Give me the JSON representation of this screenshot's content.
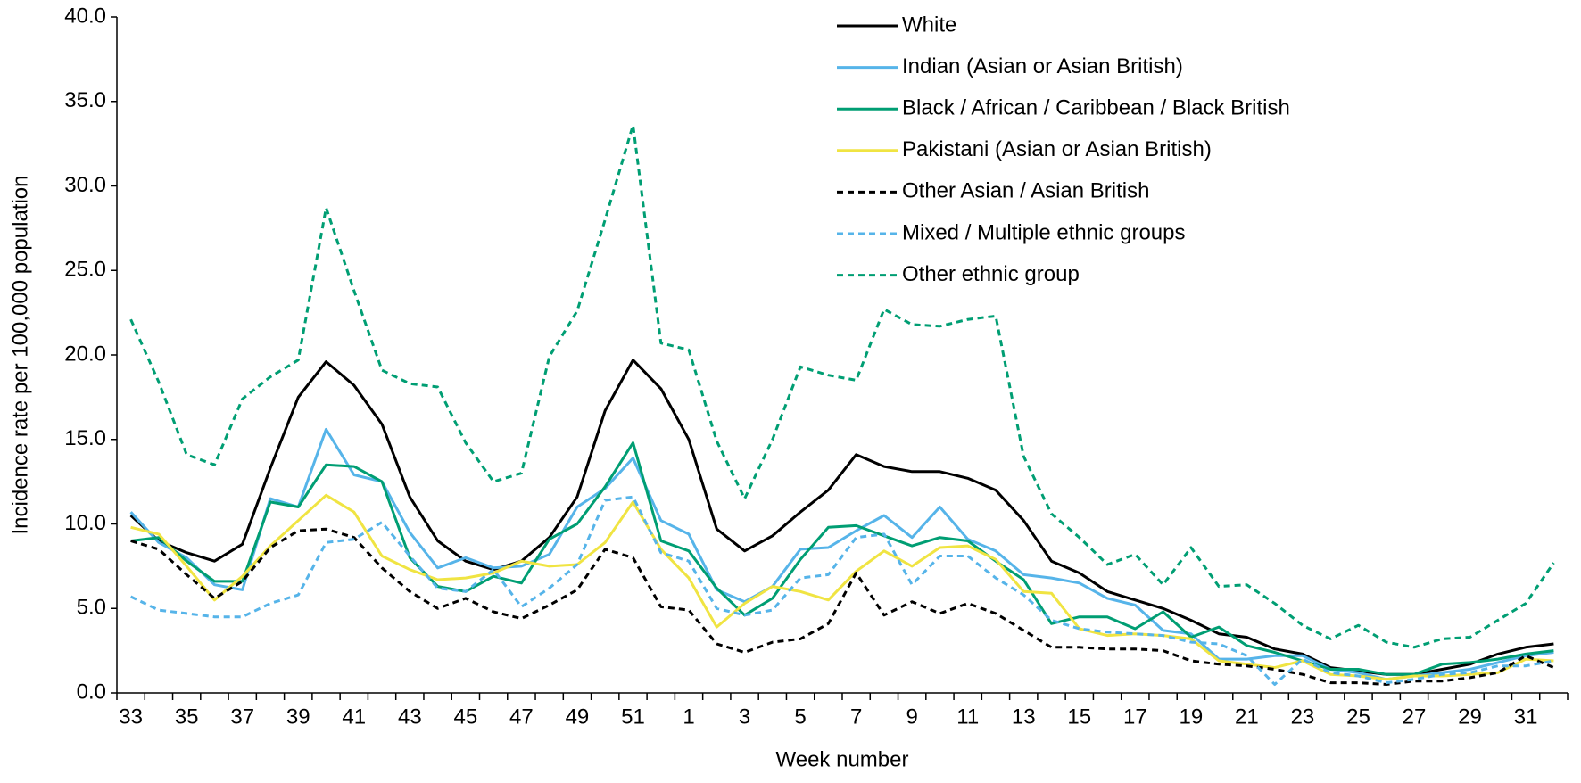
{
  "chart_data": {
    "type": "line",
    "x_label": "Week number",
    "y_label": "Incidence rate per 100,000 population",
    "categories": [
      "33",
      null,
      "35",
      null,
      "37",
      null,
      "39",
      null,
      "41",
      null,
      "43",
      null,
      "45",
      null,
      "47",
      null,
      "49",
      null,
      "51",
      null,
      "1",
      null,
      "3",
      null,
      "5",
      null,
      "7",
      null,
      "9",
      null,
      "11",
      null,
      "13",
      null,
      "15",
      null,
      "17",
      null,
      "19",
      null,
      "21",
      null,
      "23",
      null,
      "25",
      null,
      "27",
      null,
      "29",
      null,
      "31",
      null
    ],
    "ylim": [
      0,
      40
    ],
    "yticks": [
      {
        "value": 0,
        "label": "0.0"
      },
      {
        "value": 5,
        "label": "5.0"
      },
      {
        "value": 10,
        "label": "10.0"
      },
      {
        "value": 15,
        "label": "15.0"
      },
      {
        "value": 20,
        "label": "20.0"
      },
      {
        "value": 25,
        "label": "25.0"
      },
      {
        "value": 30,
        "label": "30.0"
      },
      {
        "value": 35,
        "label": "35.0"
      },
      {
        "value": 40,
        "label": "40.0"
      }
    ],
    "grid": false,
    "legend": "top-right",
    "series": [
      {
        "name": "White",
        "color": "#000000",
        "dashed": false,
        "values": [
          10.5,
          9.0,
          8.3,
          7.8,
          8.8,
          13.3,
          17.5,
          19.6,
          18.2,
          15.9,
          11.6,
          9.0,
          7.8,
          7.3,
          7.8,
          9.2,
          11.6,
          16.7,
          19.7,
          18.0,
          15.0,
          9.7,
          8.4,
          9.3,
          10.7,
          12.0,
          14.1,
          13.4,
          13.1,
          13.1,
          12.7,
          12.0,
          10.2,
          7.8,
          7.1,
          6.0,
          5.5,
          5.0,
          4.3,
          3.5,
          3.3,
          2.6,
          2.3,
          1.5,
          1.3,
          1.1,
          1.1,
          1.4,
          1.7,
          2.3,
          2.7,
          2.9
        ]
      },
      {
        "name": "Indian (Asian or Asian British)",
        "color": "#56b4e9",
        "dashed": false,
        "values": [
          10.7,
          8.9,
          8.0,
          6.4,
          6.1,
          11.5,
          11.0,
          15.6,
          12.9,
          12.5,
          9.5,
          7.4,
          8.0,
          7.4,
          7.5,
          8.2,
          11.0,
          12.1,
          13.9,
          10.2,
          9.4,
          6.1,
          5.4,
          6.3,
          8.5,
          8.6,
          9.6,
          10.5,
          9.2,
          11.0,
          9.1,
          8.4,
          7.0,
          6.8,
          6.5,
          5.6,
          5.2,
          3.7,
          3.5,
          2.0,
          2.0,
          2.2,
          2.2,
          1.4,
          1.2,
          0.8,
          1.0,
          1.2,
          1.4,
          1.8,
          2.2,
          2.4
        ]
      },
      {
        "name": "Black / African / Caribbean / Black British",
        "color": "#009e73",
        "dashed": false,
        "values": [
          9.0,
          9.2,
          7.8,
          6.6,
          6.6,
          11.3,
          11.0,
          13.5,
          13.4,
          12.5,
          8.0,
          6.3,
          6.0,
          6.9,
          6.5,
          9.1,
          10.0,
          12.2,
          14.8,
          9.0,
          8.4,
          6.2,
          4.6,
          5.6,
          7.9,
          9.8,
          9.9,
          9.3,
          8.7,
          9.2,
          9.0,
          7.8,
          6.7,
          4.1,
          4.5,
          4.5,
          3.8,
          4.8,
          3.3,
          3.9,
          2.8,
          2.4,
          1.9,
          1.4,
          1.4,
          1.1,
          1.1,
          1.7,
          1.8,
          2.0,
          2.3,
          2.5
        ]
      },
      {
        "name": "Pakistani (Asian or Asian British)",
        "color": "#f0e442",
        "dashed": false,
        "values": [
          9.8,
          9.4,
          7.5,
          5.5,
          6.9,
          8.7,
          10.2,
          11.7,
          10.7,
          8.1,
          7.3,
          6.7,
          6.8,
          7.1,
          7.8,
          7.5,
          7.6,
          8.9,
          11.3,
          8.5,
          6.8,
          3.9,
          5.3,
          6.3,
          6.0,
          5.5,
          7.2,
          8.4,
          7.5,
          8.6,
          8.7,
          7.9,
          6.0,
          5.9,
          3.8,
          3.4,
          3.5,
          3.4,
          3.2,
          1.9,
          1.7,
          1.5,
          1.9,
          1.1,
          1.0,
          0.8,
          1.0,
          1.0,
          1.1,
          1.2,
          2.0,
          1.9
        ]
      },
      {
        "name": "Other Asian / Asian British",
        "color": "#000000",
        "dashed": true,
        "values": [
          9.0,
          8.5,
          7.0,
          5.6,
          6.6,
          8.6,
          9.6,
          9.7,
          9.2,
          7.4,
          6.0,
          5.0,
          5.6,
          4.8,
          4.4,
          5.2,
          6.1,
          8.5,
          8.0,
          5.1,
          4.9,
          2.9,
          2.4,
          3.0,
          3.2,
          4.1,
          7.1,
          4.6,
          5.4,
          4.7,
          5.3,
          4.7,
          3.7,
          2.7,
          2.7,
          2.6,
          2.6,
          2.5,
          1.9,
          1.7,
          1.6,
          1.4,
          1.1,
          0.6,
          0.6,
          0.5,
          0.7,
          0.7,
          0.9,
          1.2,
          2.2,
          1.5
        ]
      },
      {
        "name": "Mixed / Multiple ethnic groups",
        "color": "#56b4e9",
        "dashed": true,
        "values": [
          5.7,
          4.9,
          4.7,
          4.5,
          4.5,
          5.3,
          5.8,
          8.9,
          9.1,
          10.1,
          8.1,
          6.2,
          6.0,
          7.3,
          5.1,
          6.2,
          7.6,
          11.4,
          11.6,
          8.3,
          7.8,
          5.0,
          4.6,
          4.9,
          6.8,
          7.0,
          9.2,
          9.4,
          6.4,
          8.1,
          8.1,
          6.8,
          5.8,
          4.3,
          3.8,
          3.6,
          3.5,
          3.4,
          3.0,
          2.9,
          2.2,
          0.5,
          2.0,
          1.2,
          1.0,
          0.6,
          0.8,
          1.1,
          1.2,
          1.6,
          1.6,
          1.9
        ]
      },
      {
        "name": "Other ethnic group",
        "color": "#009e73",
        "dashed": true,
        "values": [
          22.1,
          18.4,
          14.1,
          13.5,
          17.4,
          18.7,
          19.7,
          28.7,
          23.8,
          19.1,
          18.3,
          18.1,
          14.8,
          12.5,
          13.0,
          19.9,
          22.6,
          28.0,
          33.6,
          20.7,
          20.3,
          14.9,
          11.5,
          15.0,
          19.3,
          18.8,
          18.5,
          22.7,
          21.8,
          21.7,
          22.1,
          22.3,
          14.0,
          10.6,
          9.2,
          7.6,
          8.2,
          6.4,
          8.6,
          6.3,
          6.4,
          5.3,
          4.0,
          3.2,
          4.0,
          3.0,
          2.7,
          3.2,
          3.3,
          4.3,
          5.3,
          7.7
        ]
      }
    ]
  }
}
